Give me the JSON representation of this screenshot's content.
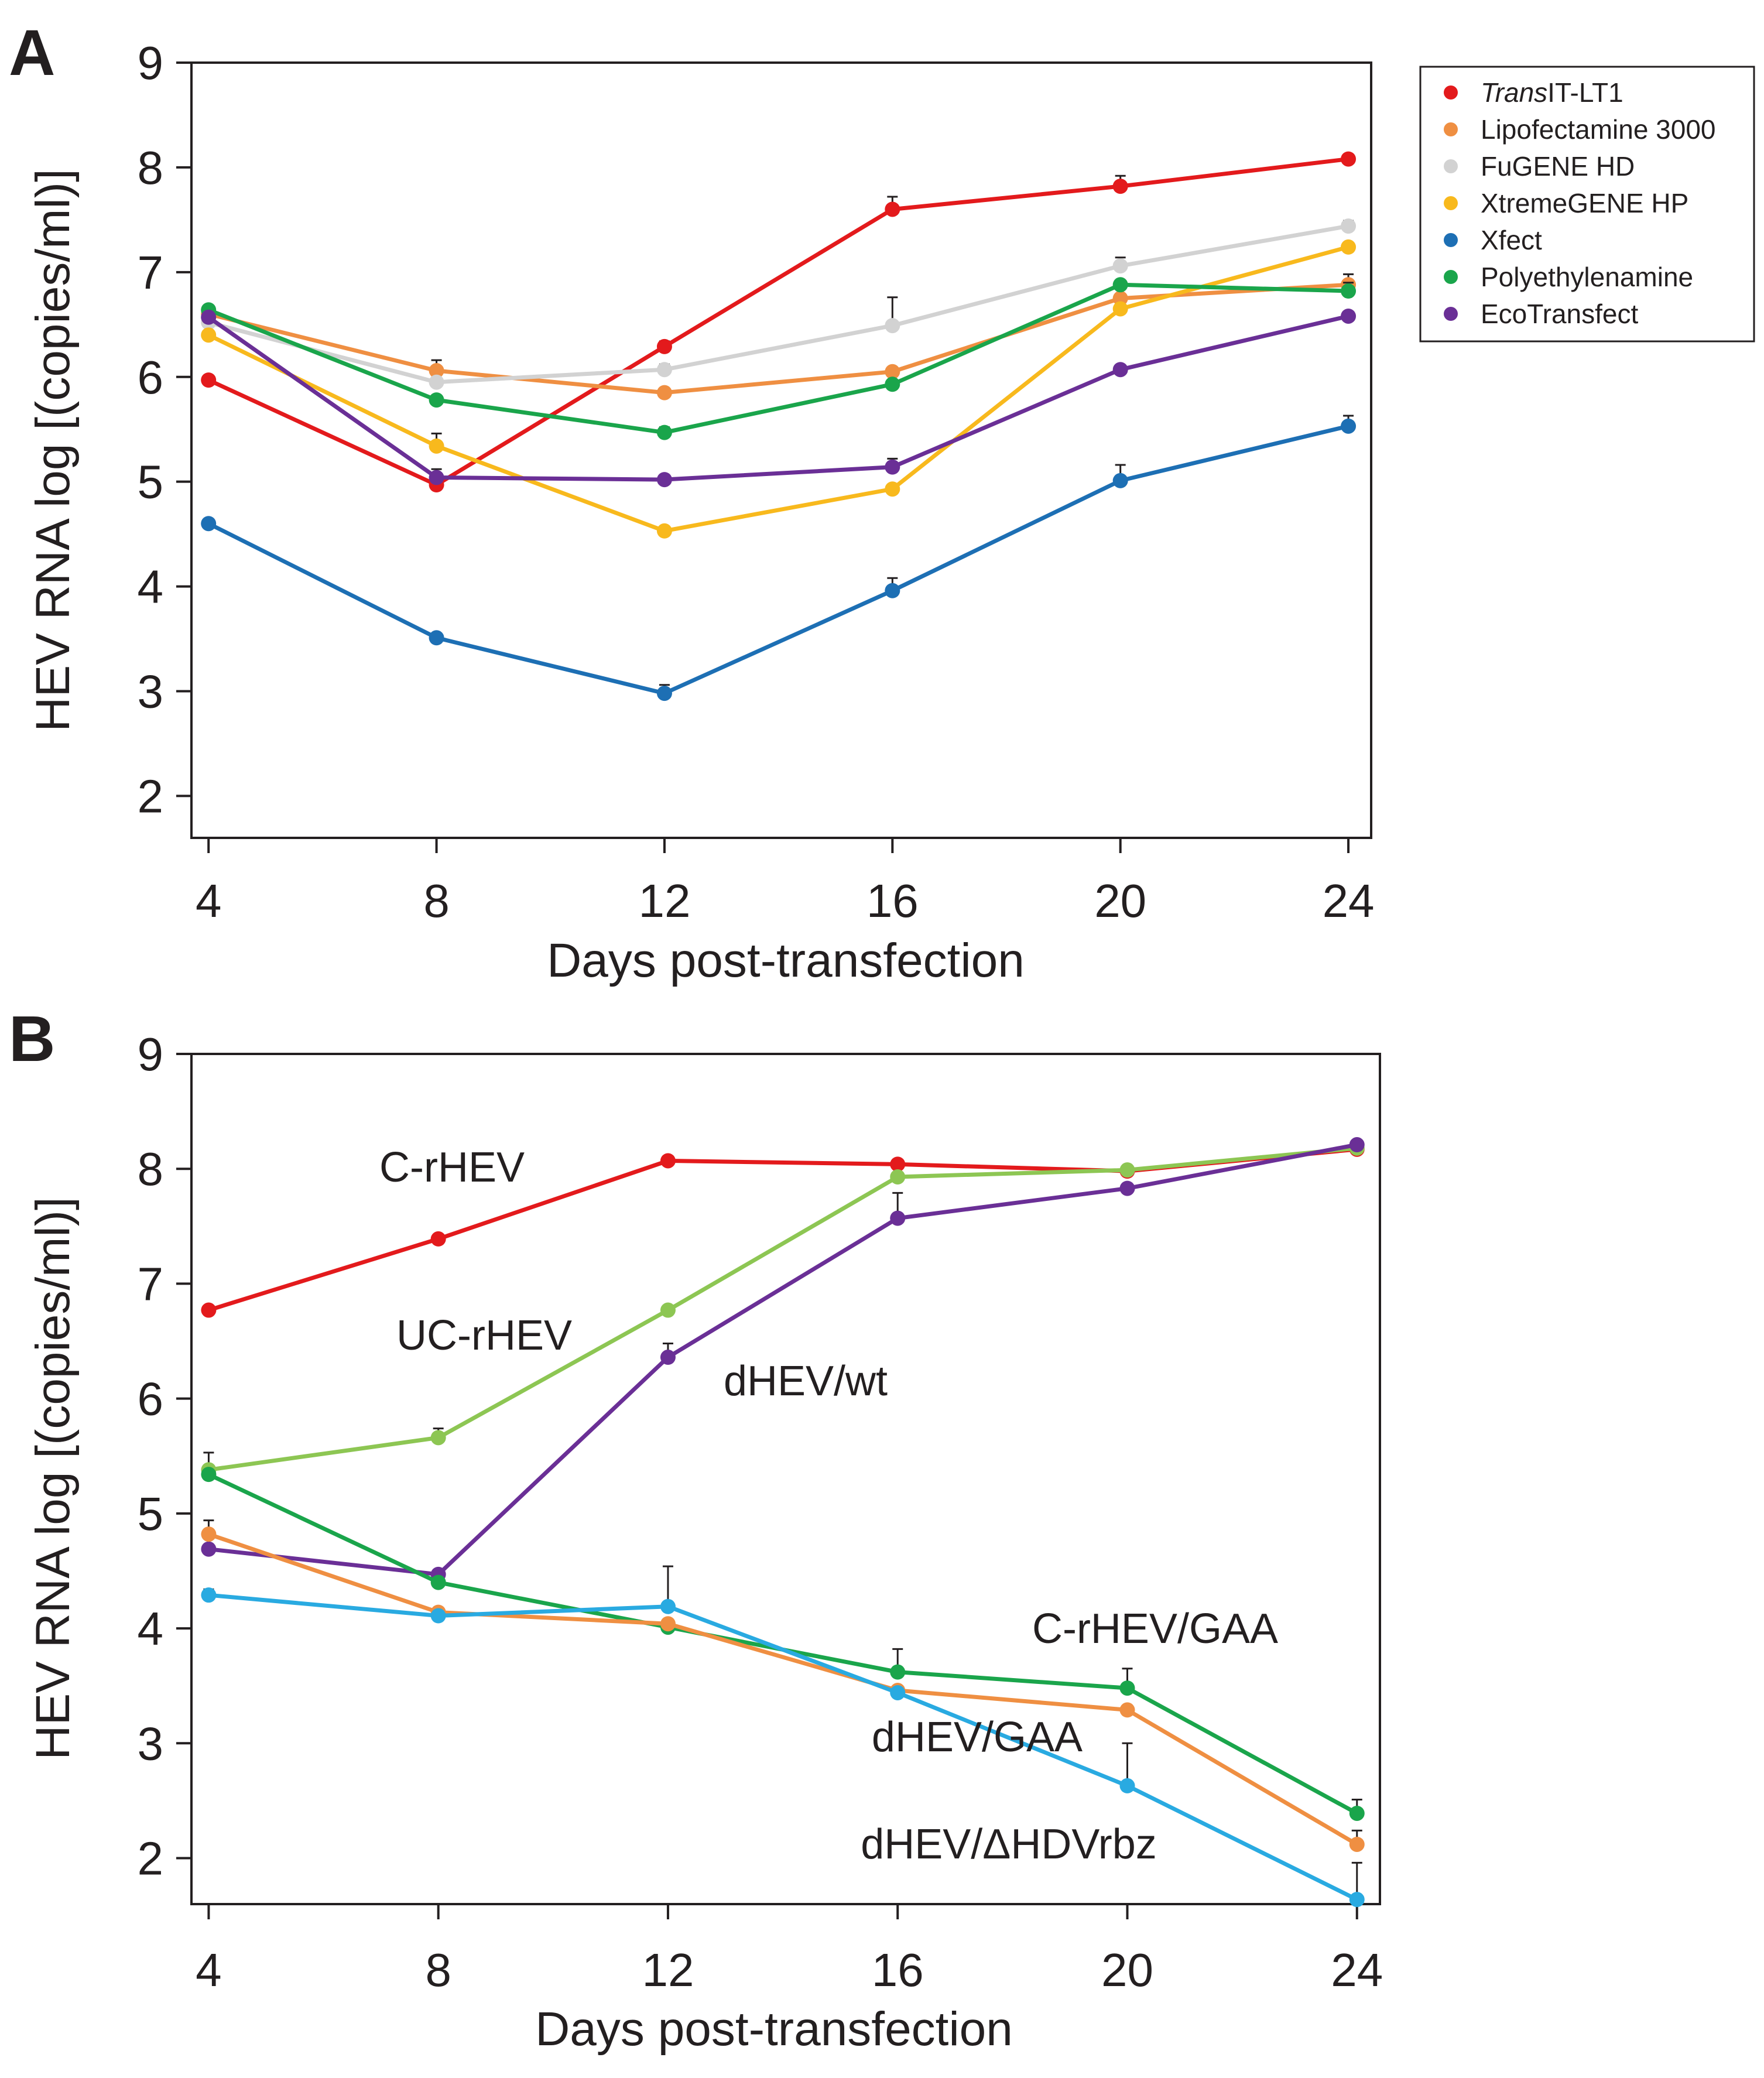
{
  "chart_data": [
    {
      "panel_label": "A",
      "type": "line",
      "xlabel": "Days post-transfection",
      "ylabel": "HEV RNA log [(copies/ml)]",
      "x": [
        4,
        8,
        12,
        16,
        20,
        24
      ],
      "xticks": [
        "4",
        "8",
        "12",
        "16",
        "20",
        "24"
      ],
      "yticks": [
        "2",
        "3",
        "4",
        "5",
        "6",
        "7",
        "8",
        "9"
      ],
      "ylim": [
        1.6,
        9
      ],
      "xlim": [
        3.7,
        24.4
      ],
      "legend_position": "top-right, outside plot",
      "series": [
        {
          "name": "TransIT-LT1",
          "name_italic": "Trans",
          "name_rest": "IT-LT1",
          "color": "#e31a1c",
          "values": [
            5.97,
            4.97,
            6.29,
            7.6,
            7.82,
            8.08
          ],
          "errors": [
            0.0,
            0.05,
            0.05,
            0.12,
            0.1,
            0.0
          ]
        },
        {
          "name": "Lipofectamine 3000",
          "color": "#ef8f42",
          "values": [
            6.6,
            6.06,
            5.85,
            6.05,
            6.75,
            6.88
          ],
          "errors": [
            0.0,
            0.1,
            0.0,
            0.0,
            0.0,
            0.1
          ]
        },
        {
          "name": "FuGENE HD",
          "color": "#d2d2d2",
          "values": [
            6.52,
            5.95,
            6.07,
            6.49,
            7.06,
            7.44
          ],
          "errors": [
            0.0,
            0.0,
            0.05,
            0.27,
            0.08,
            0.05
          ]
        },
        {
          "name": "XtremeGENE HP",
          "color": "#f8b91d",
          "values": [
            6.4,
            5.34,
            4.53,
            4.93,
            6.65,
            7.24
          ],
          "errors": [
            0.0,
            0.12,
            0.0,
            0.0,
            0.0,
            0.0
          ]
        },
        {
          "name": "Xfect",
          "color": "#1d6fb4",
          "values": [
            4.6,
            3.51,
            2.98,
            3.96,
            5.01,
            5.53
          ],
          "errors": [
            0.0,
            0.0,
            0.08,
            0.12,
            0.15,
            0.1
          ]
        },
        {
          "name": "Polyethylenamine",
          "color": "#1aa54b",
          "values": [
            6.64,
            5.78,
            5.47,
            5.93,
            6.88,
            6.82
          ],
          "errors": [
            0.0,
            0.0,
            0.05,
            0.0,
            0.0,
            0.08
          ]
        },
        {
          "name": "EcoTransfect",
          "color": "#6a2f96",
          "values": [
            6.57,
            5.04,
            5.02,
            5.14,
            6.07,
            6.58
          ],
          "errors": [
            0.0,
            0.08,
            0.0,
            0.08,
            0.0,
            0.0
          ]
        }
      ]
    },
    {
      "panel_label": "B",
      "type": "line",
      "xlabel": "Days post-transfection",
      "ylabel": "HEV RNA log [(copies/ml)]",
      "x": [
        4,
        8,
        12,
        16,
        20,
        24
      ],
      "xticks": [
        "4",
        "8",
        "12",
        "16",
        "20",
        "24"
      ],
      "yticks": [
        "2",
        "3",
        "4",
        "5",
        "6",
        "7",
        "8",
        "9"
      ],
      "ylim": [
        1.6,
        9
      ],
      "xlim": [
        3.7,
        24.4
      ],
      "series": [
        {
          "name": "C-rHEV",
          "color": "#e31a1c",
          "values": [
            6.77,
            7.39,
            8.07,
            8.04,
            7.98,
            8.17
          ],
          "errors": [
            0.0,
            0.0,
            0.0,
            0.0,
            0.0,
            0.0
          ]
        },
        {
          "name": "UC-rHEV",
          "color": "#8dc653",
          "values": [
            5.38,
            5.66,
            6.77,
            7.93,
            7.99,
            8.18
          ],
          "errors": [
            0.15,
            0.08,
            0.0,
            0.0,
            0.0,
            0.0
          ]
        },
        {
          "name": "dHEV/wt",
          "color": "#6a2f96",
          "values": [
            4.69,
            4.47,
            6.36,
            7.57,
            7.83,
            8.21
          ],
          "errors": [
            0.0,
            0.0,
            0.12,
            0.22,
            0.0,
            0.0
          ]
        },
        {
          "name": "C-rHEV/GAA",
          "color": "#1aa54b",
          "values": [
            5.34,
            4.4,
            4.01,
            3.62,
            3.48,
            2.39
          ],
          "errors": [
            0.0,
            0.0,
            0.0,
            0.2,
            0.17,
            0.12
          ]
        },
        {
          "name": "dHEV/GAA",
          "color": "#ef8f42",
          "values": [
            4.82,
            4.14,
            4.04,
            3.46,
            3.29,
            2.12
          ],
          "errors": [
            0.12,
            0.0,
            0.0,
            0.0,
            0.0,
            0.12
          ]
        },
        {
          "name": "dHEV/ΔHDVrbz",
          "color": "#29aae1",
          "values": [
            4.29,
            4.11,
            4.19,
            3.44,
            2.63,
            1.64
          ],
          "errors": [
            0.05,
            0.0,
            0.35,
            0.0,
            0.37,
            0.32
          ]
        }
      ]
    }
  ]
}
